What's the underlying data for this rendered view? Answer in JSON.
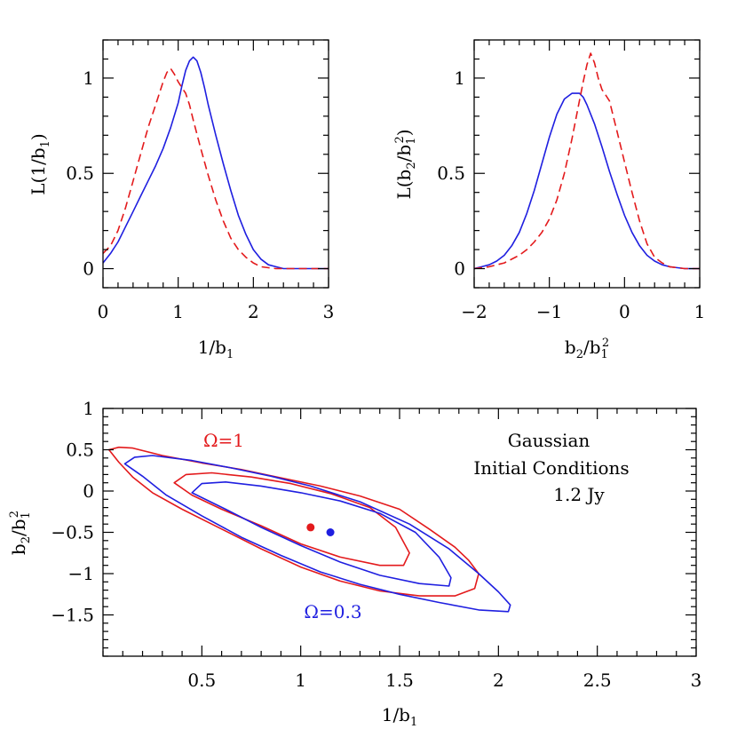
{
  "colors": {
    "omega1": "#e31a1c",
    "omega03": "#1f1fe0",
    "axis": "#000000"
  },
  "chart_data": [
    {
      "id": "top-left",
      "type": "line",
      "xlabel": "1/b₁",
      "ylabel": "L(1/b₁)",
      "xlim": [
        0,
        3
      ],
      "ylim": [
        -0.1,
        1.2
      ],
      "xticks": [
        0,
        1,
        2,
        3
      ],
      "yticks": [
        0,
        0.5,
        1
      ],
      "xtick_labels": [
        "0",
        "1",
        "2",
        "3"
      ],
      "ytick_labels": [
        "0",
        "0.5",
        "1"
      ],
      "series": [
        {
          "color": "blue",
          "style": "solid",
          "x": [
            0,
            0.1,
            0.2,
            0.3,
            0.4,
            0.5,
            0.6,
            0.7,
            0.8,
            0.9,
            1.0,
            1.05,
            1.1,
            1.15,
            1.2,
            1.25,
            1.3,
            1.35,
            1.4,
            1.5,
            1.6,
            1.7,
            1.8,
            1.9,
            2.0,
            2.1,
            2.2,
            2.3,
            2.4,
            2.5,
            2.7,
            3.0
          ],
          "y": [
            0.03,
            0.08,
            0.14,
            0.22,
            0.3,
            0.38,
            0.46,
            0.54,
            0.63,
            0.74,
            0.87,
            0.96,
            1.04,
            1.09,
            1.11,
            1.09,
            1.03,
            0.95,
            0.86,
            0.7,
            0.55,
            0.41,
            0.28,
            0.18,
            0.1,
            0.05,
            0.02,
            0.01,
            0.0,
            0.0,
            0.0,
            0.0
          ]
        },
        {
          "color": "red",
          "style": "dashed",
          "x": [
            0,
            0.1,
            0.2,
            0.3,
            0.4,
            0.5,
            0.6,
            0.7,
            0.8,
            0.85,
            0.9,
            0.95,
            1.0,
            1.05,
            1.1,
            1.15,
            1.2,
            1.3,
            1.4,
            1.5,
            1.6,
            1.7,
            1.8,
            1.9,
            2.0,
            2.1,
            2.2,
            2.3,
            2.5,
            3.0
          ],
          "y": [
            0.08,
            0.12,
            0.2,
            0.32,
            0.46,
            0.6,
            0.74,
            0.86,
            0.98,
            1.03,
            1.05,
            1.02,
            0.98,
            0.95,
            0.92,
            0.86,
            0.78,
            0.63,
            0.49,
            0.36,
            0.25,
            0.16,
            0.1,
            0.06,
            0.03,
            0.01,
            0.005,
            0.0,
            0.0,
            0.0
          ]
        }
      ]
    },
    {
      "id": "top-right",
      "type": "line",
      "xlabel": "b₂/b₁²",
      "ylabel": "L(b₂/b₁²)",
      "xlim": [
        -2,
        1
      ],
      "ylim": [
        -0.1,
        1.2
      ],
      "xticks": [
        -2,
        -1,
        0,
        1
      ],
      "yticks": [
        0,
        0.5,
        1
      ],
      "xtick_labels": [
        "−2",
        "−1",
        "0",
        "1"
      ],
      "ytick_labels": [
        "0",
        "0.5",
        "1"
      ],
      "series": [
        {
          "color": "blue",
          "style": "solid",
          "x": [
            -2.0,
            -1.9,
            -1.8,
            -1.7,
            -1.6,
            -1.5,
            -1.4,
            -1.3,
            -1.2,
            -1.1,
            -1.0,
            -0.9,
            -0.8,
            -0.7,
            -0.6,
            -0.55,
            -0.5,
            -0.4,
            -0.3,
            -0.2,
            -0.1,
            0.0,
            0.1,
            0.2,
            0.3,
            0.4,
            0.5,
            0.6,
            0.8,
            1.0
          ],
          "y": [
            0.0,
            0.01,
            0.02,
            0.04,
            0.07,
            0.12,
            0.19,
            0.29,
            0.41,
            0.55,
            0.69,
            0.81,
            0.89,
            0.92,
            0.92,
            0.9,
            0.86,
            0.76,
            0.64,
            0.51,
            0.39,
            0.28,
            0.19,
            0.12,
            0.07,
            0.04,
            0.02,
            0.01,
            0.0,
            0.0
          ]
        },
        {
          "color": "red",
          "style": "dashed",
          "x": [
            -2.0,
            -1.8,
            -1.6,
            -1.4,
            -1.3,
            -1.2,
            -1.1,
            -1.0,
            -0.9,
            -0.8,
            -0.7,
            -0.6,
            -0.55,
            -0.5,
            -0.45,
            -0.4,
            -0.35,
            -0.3,
            -0.25,
            -0.2,
            -0.15,
            -0.1,
            0.0,
            0.1,
            0.2,
            0.3,
            0.4,
            0.5,
            0.6,
            0.8,
            1.0
          ],
          "y": [
            0.0,
            0.01,
            0.03,
            0.07,
            0.1,
            0.14,
            0.19,
            0.26,
            0.36,
            0.5,
            0.68,
            0.88,
            0.98,
            1.07,
            1.13,
            1.08,
            1.0,
            0.94,
            0.91,
            0.88,
            0.8,
            0.72,
            0.56,
            0.4,
            0.25,
            0.13,
            0.06,
            0.03,
            0.01,
            0.0,
            0.0
          ]
        }
      ]
    },
    {
      "id": "bottom",
      "type": "contour",
      "xlabel": "1/b₁",
      "ylabel": "b₂/b₁²",
      "xlim": [
        0,
        3
      ],
      "ylim": [
        -2,
        1
      ],
      "xticks": [
        0.5,
        1,
        1.5,
        2,
        2.5,
        3
      ],
      "yticks": [
        -1.5,
        -1,
        -0.5,
        0,
        0.5,
        1
      ],
      "xtick_labels": [
        "0.5",
        "1",
        "1.5",
        "2",
        "2.5",
        "3"
      ],
      "ytick_labels": [
        "−1.5",
        "−1",
        "−0.5",
        "0",
        "0.5",
        "1"
      ],
      "annotations": {
        "omega1": "Ω=1",
        "omega03": "Ω=0.3",
        "title_line1": "Gaussian",
        "title_line2": "Initial Conditions",
        "title_line3": "1.2 Jy"
      },
      "points": [
        {
          "color": "red",
          "x": 1.05,
          "y": -0.44
        },
        {
          "color": "blue",
          "x": 1.15,
          "y": -0.5
        }
      ],
      "contours": [
        {
          "color": "red",
          "level": "outer",
          "x": [
            0.03,
            0.08,
            0.15,
            0.3,
            0.5,
            0.7,
            0.9,
            1.1,
            1.3,
            1.5,
            1.65,
            1.78,
            1.85,
            1.9,
            1.88,
            1.78,
            1.6,
            1.4,
            1.2,
            1.0,
            0.8,
            0.6,
            0.4,
            0.25,
            0.15,
            0.08,
            0.03
          ],
          "y": [
            0.5,
            0.53,
            0.52,
            0.43,
            0.34,
            0.26,
            0.16,
            0.06,
            -0.06,
            -0.22,
            -0.46,
            -0.68,
            -0.84,
            -1.0,
            -1.18,
            -1.27,
            -1.27,
            -1.21,
            -1.09,
            -0.92,
            -0.7,
            -0.46,
            -0.22,
            -0.02,
            0.17,
            0.35,
            0.5
          ]
        },
        {
          "color": "red",
          "level": "inner",
          "x": [
            0.36,
            0.42,
            0.55,
            0.75,
            0.95,
            1.15,
            1.35,
            1.48,
            1.55,
            1.52,
            1.4,
            1.2,
            1.0,
            0.8,
            0.6,
            0.45,
            0.36
          ],
          "y": [
            0.1,
            0.2,
            0.22,
            0.17,
            0.09,
            -0.03,
            -0.2,
            -0.44,
            -0.75,
            -0.9,
            -0.9,
            -0.8,
            -0.64,
            -0.42,
            -0.22,
            -0.05,
            0.1
          ]
        },
        {
          "color": "blue",
          "level": "outer",
          "x": [
            0.11,
            0.16,
            0.25,
            0.45,
            0.65,
            0.85,
            1.05,
            1.3,
            1.55,
            1.75,
            1.9,
            2.0,
            2.06,
            2.05,
            1.9,
            1.7,
            1.5,
            1.3,
            1.1,
            0.9,
            0.7,
            0.5,
            0.32,
            0.2,
            0.11
          ],
          "y": [
            0.33,
            0.41,
            0.43,
            0.37,
            0.28,
            0.18,
            0.06,
            -0.13,
            -0.4,
            -0.7,
            -1.0,
            -1.22,
            -1.38,
            -1.46,
            -1.44,
            -1.35,
            -1.25,
            -1.13,
            -0.98,
            -0.78,
            -0.56,
            -0.3,
            -0.05,
            0.18,
            0.33
          ]
        },
        {
          "color": "blue",
          "level": "inner",
          "x": [
            0.45,
            0.5,
            0.62,
            0.8,
            1.0,
            1.2,
            1.4,
            1.58,
            1.7,
            1.76,
            1.75,
            1.6,
            1.4,
            1.2,
            1.0,
            0.8,
            0.62,
            0.5,
            0.45
          ],
          "y": [
            -0.02,
            0.09,
            0.11,
            0.06,
            -0.02,
            -0.12,
            -0.27,
            -0.5,
            -0.8,
            -1.05,
            -1.15,
            -1.12,
            -1.02,
            -0.86,
            -0.66,
            -0.44,
            -0.22,
            -0.08,
            -0.02
          ]
        }
      ]
    }
  ]
}
